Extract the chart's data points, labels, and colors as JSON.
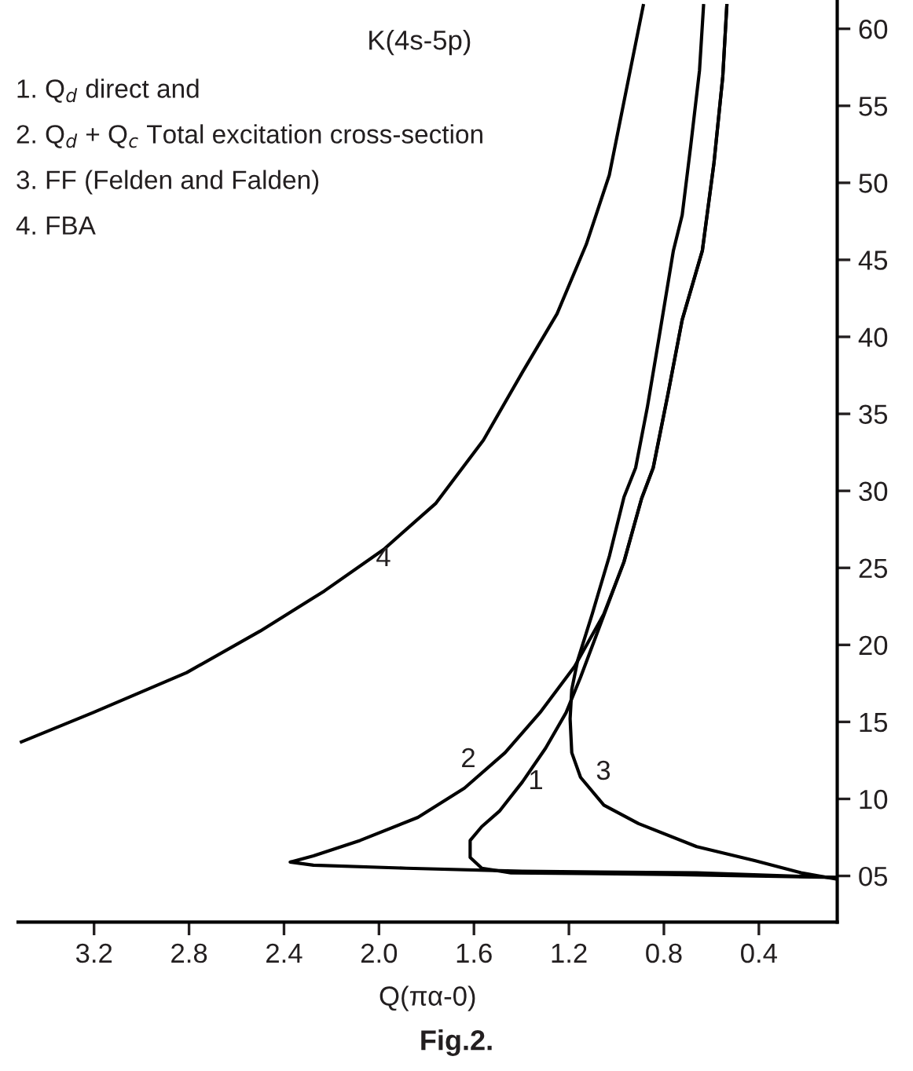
{
  "chart_data": {
    "type": "line",
    "title": "K(4s-5p)",
    "xlabel": "Q(πα-0)",
    "xlim": [
      3.52,
      0.07
    ],
    "ylim": [
      2,
      61.8
    ],
    "xticks": [
      {
        "value": 3.2,
        "label": "3.2"
      },
      {
        "value": 2.8,
        "label": "2.8"
      },
      {
        "value": 2.4,
        "label": "2.4"
      },
      {
        "value": 2.0,
        "label": "2.0"
      },
      {
        "value": 1.6,
        "label": "1.6"
      },
      {
        "value": 1.2,
        "label": "1.2"
      },
      {
        "value": 0.8,
        "label": "0.8"
      },
      {
        "value": 0.4,
        "label": "0.4"
      }
    ],
    "yticks": [
      {
        "value": 5,
        "label": "05"
      },
      10,
      15,
      20,
      25,
      30,
      35,
      40,
      45,
      50,
      55,
      60
    ],
    "grid": false,
    "marker": "none",
    "line_style": "solid",
    "series": [
      {
        "color": "#000000",
        "x": [
          0.075,
          0.784,
          1.444,
          1.567,
          1.616,
          1.616,
          1.567,
          1.493,
          1.396,
          1.298,
          1.212,
          1.151,
          1.078,
          0.968,
          0.894,
          0.845,
          0.784,
          0.723,
          0.638,
          0.589,
          0.552,
          0.535
        ],
        "values": [
          4.9,
          5.1,
          5.2,
          5.5,
          6.2,
          7.3,
          8.2,
          9.2,
          11.1,
          13.3,
          15.6,
          17.9,
          20.9,
          25.4,
          29.5,
          31.5,
          36.2,
          41.1,
          45.6,
          51.3,
          56.9,
          61.5
        ]
      },
      {
        "color": "#000000",
        "x": [
          0.075,
          0.662,
          1.396,
          1.885,
          2.276,
          2.374,
          2.276,
          2.08,
          1.836,
          1.64,
          1.469,
          1.322,
          1.176,
          1.053,
          0.968,
          0.894,
          0.845,
          0.784,
          0.723,
          0.638,
          0.589,
          0.552,
          0.535
        ],
        "values": [
          4.9,
          5.2,
          5.3,
          5.5,
          5.7,
          5.9,
          6.3,
          7.3,
          8.8,
          10.7,
          13.0,
          15.6,
          18.6,
          22.0,
          25.4,
          29.5,
          31.5,
          36.2,
          41.1,
          45.6,
          51.3,
          56.9,
          61.5
        ]
      },
      {
        "color": "#000000",
        "x": [
          0.075,
          0.222,
          0.418,
          0.662,
          0.907,
          1.053,
          1.151,
          1.188,
          1.195,
          1.188,
          1.163,
          1.102,
          1.029,
          0.968,
          0.919,
          0.87,
          0.821,
          0.76,
          0.723,
          0.687,
          0.65,
          0.633
        ],
        "values": [
          4.8,
          5.2,
          6.0,
          6.9,
          8.4,
          9.6,
          11.4,
          13.0,
          15.2,
          17.1,
          19.0,
          22.0,
          25.8,
          29.6,
          31.5,
          35.4,
          39.9,
          45.6,
          47.9,
          52.4,
          57.3,
          61.5
        ]
      },
      {
        "color": "#000000",
        "x": [
          3.506,
          3.205,
          2.81,
          2.5,
          2.23,
          1.98,
          1.76,
          1.56,
          1.396,
          1.25,
          1.127,
          1.03,
          0.956,
          0.887
        ],
        "values": [
          13.7,
          15.6,
          18.2,
          20.9,
          23.5,
          26.2,
          29.2,
          33.3,
          37.7,
          41.5,
          46.0,
          50.5,
          56.2,
          61.5
        ]
      }
    ],
    "annotations": [
      "1. Q$_{d}$ direct and",
      "2. Q$_{d}$ + Q$_{c}$ Total excitation cross-section",
      "3. FF (Felden and Falden)",
      "4. FBA",
      "1",
      "2",
      "3",
      "4",
      "Fig.2."
    ]
  }
}
